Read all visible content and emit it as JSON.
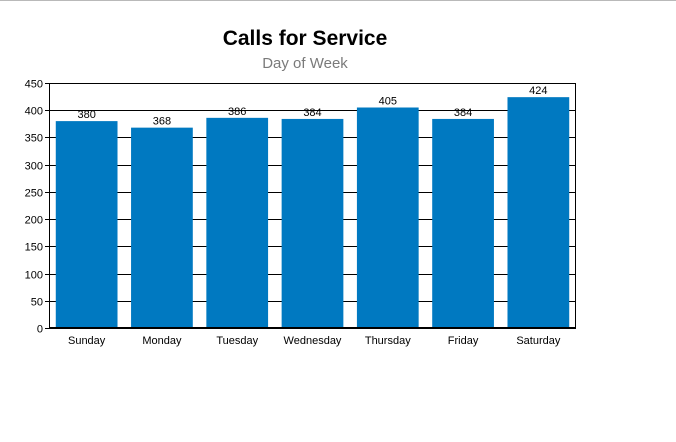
{
  "chart_data": {
    "type": "bar",
    "title": "Calls for Service",
    "subtitle": "Day of Week",
    "xlabel": "",
    "ylabel": "",
    "categories": [
      "Sunday",
      "Monday",
      "Tuesday",
      "Wednesday",
      "Thursday",
      "Friday",
      "Saturday"
    ],
    "values": [
      380,
      368,
      386,
      384,
      405,
      384,
      424
    ],
    "ylim": [
      0,
      450
    ],
    "yticks": [
      0,
      50,
      100,
      150,
      200,
      250,
      300,
      350,
      400,
      450
    ],
    "grid": true,
    "legend": "none",
    "bar_color": "#0079c1"
  }
}
